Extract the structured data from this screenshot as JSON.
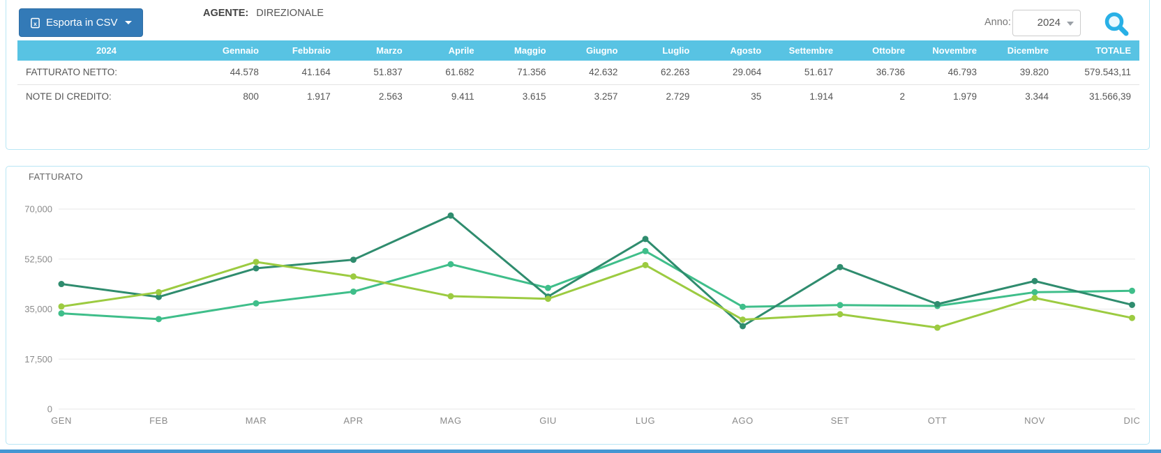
{
  "toolbar": {
    "export_label": "Esporta in CSV",
    "agente_label": "AGENTE:",
    "agente_value": "DIREZIONALE",
    "anno_label": "Anno:",
    "anno_value": "2024"
  },
  "table": {
    "year_header": "2024",
    "columns": [
      "Gennaio",
      "Febbraio",
      "Marzo",
      "Aprile",
      "Maggio",
      "Giugno",
      "Luglio",
      "Agosto",
      "Settembre",
      "Ottobre",
      "Novembre",
      "Dicembre",
      "TOTALE"
    ],
    "rows": [
      {
        "label": "FATTURATO NETTO:",
        "values": [
          "44.578",
          "41.164",
          "51.837",
          "61.682",
          "71.356",
          "42.632",
          "62.263",
          "29.064",
          "51.617",
          "36.736",
          "46.793",
          "39.820",
          "579.543,11"
        ]
      },
      {
        "label": "NOTE DI CREDITO:",
        "values": [
          "800",
          "1.917",
          "2.563",
          "9.411",
          "3.615",
          "3.257",
          "2.729",
          "35",
          "1.914",
          "2",
          "1.979",
          "3.344",
          "31.566,39"
        ]
      }
    ]
  },
  "chart_data": {
    "type": "line",
    "title": "FATTURATO",
    "x_labels": [
      "GEN",
      "FEB",
      "MAR",
      "APR",
      "MAG",
      "GIU",
      "LUG",
      "AGO",
      "SET",
      "OTT",
      "NOV",
      "DIC"
    ],
    "ylim": [
      0,
      70000
    ],
    "yticks": [
      0,
      17500,
      35000,
      52500,
      70000
    ],
    "ytick_labels": [
      "0",
      "17,500",
      "35,000",
      "52,500",
      "70,000"
    ],
    "grid": true,
    "legend": "none",
    "series": [
      {
        "name": "medium-green",
        "color": "#3fbe8a",
        "values": [
          33500,
          31500,
          37000,
          41100,
          50700,
          42400,
          55300,
          35800,
          36400,
          36100,
          40900,
          41400
        ]
      },
      {
        "name": "dark-green",
        "color": "#2f8c6e",
        "values": [
          43778,
          39247,
          49274,
          52271,
          67741,
          39375,
          59534,
          29029,
          49703,
          36734,
          44814,
          36476
        ]
      },
      {
        "name": "light-green",
        "color": "#9ccb41",
        "values": [
          35900,
          40900,
          51500,
          46400,
          39500,
          38600,
          50400,
          31300,
          33200,
          28500,
          38900,
          31900
        ]
      }
    ]
  },
  "colors": {
    "panel_border": "#b9e6f5",
    "table_header_bg": "#58c3e3",
    "button_bg": "#337ab7",
    "button_border": "#2e6da4",
    "search_icon": "#29b0e6",
    "footer_bar": "#4596d2",
    "gridline": "#e7e7e7",
    "tick_text": "#8a8a8a"
  }
}
